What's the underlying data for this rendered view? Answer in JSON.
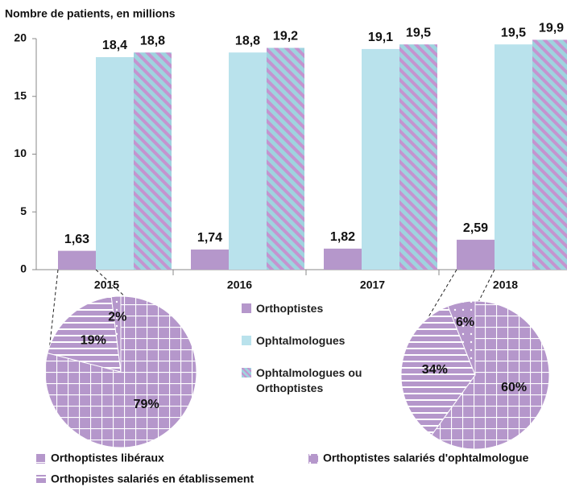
{
  "chart_data": [
    {
      "type": "bar",
      "ylabel": "Nombre de patients, en millions",
      "categories": [
        "2015",
        "2016",
        "2017",
        "2018"
      ],
      "series": [
        {
          "name": "Orthoptistes",
          "color": "#b597cb",
          "values": [
            1.63,
            1.74,
            1.82,
            2.59
          ],
          "value_labels": [
            "1,63",
            "1,74",
            "1,82",
            "2,59"
          ]
        },
        {
          "name": "Ophtalmologues",
          "color": "#b9e2ec",
          "values": [
            18.4,
            18.8,
            19.1,
            19.5
          ],
          "value_labels": [
            "18,4",
            "18,8",
            "19,1",
            "19,5"
          ]
        },
        {
          "name": "Ophtalmologues ou Orthoptistes",
          "color": "#9fd3df",
          "hatch_color": "#c494cf",
          "values": [
            18.8,
            19.2,
            19.5,
            19.9
          ],
          "value_labels": [
            "18,8",
            "19,2",
            "19,5",
            "19,9"
          ]
        }
      ],
      "ylim": [
        0,
        20
      ],
      "yticks": [
        0,
        5,
        10,
        15,
        20
      ]
    },
    {
      "type": "pie",
      "categories": [
        "Orthoptistes libéraux",
        "Orthopistes salariés en établissement",
        "Orthoptistes salariés d'ophtalmologue"
      ],
      "color": "#b597cb",
      "series": [
        {
          "name": "2015",
          "values": [
            79,
            19,
            2
          ],
          "value_labels": [
            "79%",
            "19%",
            "2%"
          ]
        },
        {
          "name": "2018",
          "values": [
            60,
            34,
            6
          ],
          "value_labels": [
            "60%",
            "34%",
            "6%"
          ]
        }
      ]
    }
  ]
}
